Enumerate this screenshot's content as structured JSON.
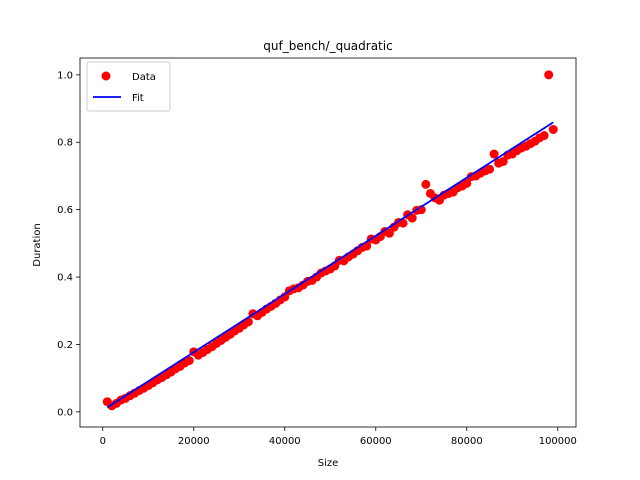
{
  "chart_data": {
    "type": "scatter",
    "title": "quf_bench/_quadratic",
    "xlabel": "Size",
    "ylabel": "Duration",
    "xlim": [
      -5000,
      104000
    ],
    "ylim": [
      -0.045,
      1.05
    ],
    "xticks": [
      0,
      20000,
      40000,
      60000,
      80000,
      100000
    ],
    "xtick_labels": [
      "0",
      "20000",
      "40000",
      "60000",
      "80000",
      "100000"
    ],
    "yticks": [
      0.0,
      0.2,
      0.4,
      0.6,
      0.8,
      1.0
    ],
    "ytick_labels": [
      "0.0",
      "0.2",
      "0.4",
      "0.6",
      "0.8",
      "1.0"
    ],
    "grid": false,
    "legend_position": "top-left",
    "series": [
      {
        "name": "Data",
        "kind": "scatter",
        "color": "#ff0000",
        "x": [
          1000,
          2000,
          3000,
          4000,
          5000,
          6000,
          7000,
          8000,
          9000,
          10000,
          11000,
          12000,
          13000,
          14000,
          15000,
          16000,
          17000,
          18000,
          19000,
          20000,
          21000,
          22000,
          23000,
          24000,
          25000,
          26000,
          27000,
          28000,
          29000,
          30000,
          31000,
          32000,
          33000,
          34000,
          35000,
          36000,
          37000,
          38000,
          39000,
          40000,
          41000,
          42000,
          43000,
          44000,
          45000,
          46000,
          47000,
          48000,
          49000,
          50000,
          51000,
          52000,
          53000,
          54000,
          55000,
          56000,
          57000,
          58000,
          59000,
          60000,
          61000,
          62000,
          63000,
          64000,
          65000,
          66000,
          67000,
          68000,
          69000,
          70000,
          71000,
          72000,
          73000,
          74000,
          75000,
          76000,
          77000,
          78000,
          79000,
          80000,
          81000,
          82000,
          83000,
          84000,
          85000,
          86000,
          87000,
          88000,
          89000,
          90000,
          91000,
          92000,
          93000,
          94000,
          95000,
          96000,
          97000,
          98000,
          99000
        ],
        "y": [
          0.03,
          0.018,
          0.025,
          0.035,
          0.04,
          0.048,
          0.055,
          0.063,
          0.07,
          0.078,
          0.086,
          0.095,
          0.102,
          0.11,
          0.118,
          0.128,
          0.135,
          0.145,
          0.152,
          0.178,
          0.168,
          0.176,
          0.185,
          0.193,
          0.203,
          0.212,
          0.221,
          0.23,
          0.24,
          0.248,
          0.258,
          0.267,
          0.291,
          0.285,
          0.295,
          0.305,
          0.313,
          0.322,
          0.332,
          0.341,
          0.359,
          0.365,
          0.368,
          0.376,
          0.387,
          0.39,
          0.4,
          0.412,
          0.418,
          0.424,
          0.433,
          0.45,
          0.448,
          0.46,
          0.468,
          0.478,
          0.488,
          0.492,
          0.513,
          0.51,
          0.52,
          0.535,
          0.53,
          0.548,
          0.562,
          0.56,
          0.585,
          0.575,
          0.598,
          0.6,
          0.675,
          0.648,
          0.635,
          0.628,
          0.643,
          0.648,
          0.652,
          0.665,
          0.67,
          0.678,
          0.698,
          0.7,
          0.708,
          0.715,
          0.72,
          0.765,
          0.738,
          0.743,
          0.762,
          0.765,
          0.775,
          0.783,
          0.788,
          0.796,
          0.803,
          0.813,
          0.82,
          1.0,
          0.838
        ]
      },
      {
        "name": "Fit",
        "kind": "line",
        "color": "#0000ff",
        "x": [
          1000,
          99000
        ],
        "y": [
          0.013,
          0.859
        ]
      }
    ]
  }
}
